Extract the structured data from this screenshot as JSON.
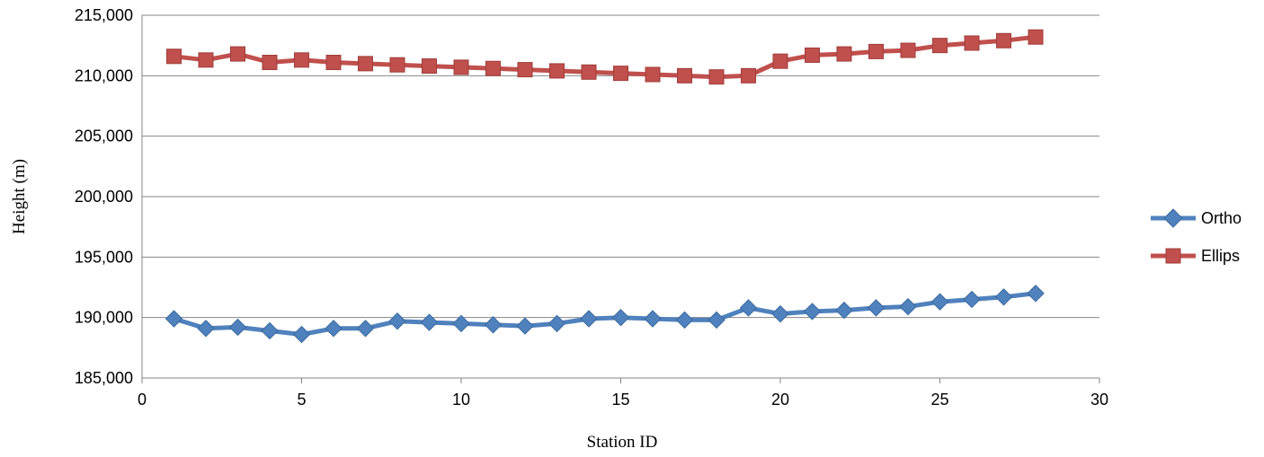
{
  "chart_data": {
    "type": "line",
    "xlabel": "Station ID",
    "ylabel": "Height (m)",
    "xlim": [
      0,
      30
    ],
    "ylim": [
      185000,
      215000
    ],
    "x_ticks": [
      0,
      5,
      10,
      15,
      20,
      25,
      30
    ],
    "y_ticks": [
      185000,
      190000,
      195000,
      200000,
      205000,
      210000,
      215000
    ],
    "x_tick_labels": [
      "0",
      "5",
      "10",
      "15",
      "20",
      "25",
      "30"
    ],
    "y_tick_labels": [
      "185,000",
      "190,000",
      "195,000",
      "200,000",
      "205,000",
      "210,000",
      "215,000"
    ],
    "grid": "horizontal major gridlines",
    "legend_position": "right",
    "x": [
      1,
      2,
      3,
      4,
      5,
      6,
      7,
      8,
      9,
      10,
      11,
      12,
      13,
      14,
      15,
      16,
      17,
      18,
      19,
      20,
      21,
      22,
      23,
      24,
      25,
      26,
      27,
      28
    ],
    "series": [
      {
        "name": "Ortho",
        "color": "#4F81BD",
        "marker": "diamond",
        "values": [
          189900,
          189100,
          189200,
          188900,
          188600,
          189100,
          189100,
          189700,
          189600,
          189500,
          189400,
          189300,
          189500,
          189900,
          190000,
          189900,
          189800,
          189800,
          190800,
          190300,
          190500,
          190600,
          190800,
          190900,
          191300,
          191500,
          191700,
          192000
        ]
      },
      {
        "name": "Ellips",
        "color": "#C0504D",
        "marker": "square",
        "values": [
          211600,
          211300,
          211800,
          211100,
          211300,
          211100,
          211000,
          210900,
          210800,
          210700,
          210600,
          210500,
          210400,
          210300,
          210200,
          210100,
          210000,
          209900,
          210000,
          211200,
          211700,
          211800,
          212000,
          212100,
          212500,
          212700,
          212900,
          213200
        ]
      }
    ]
  }
}
